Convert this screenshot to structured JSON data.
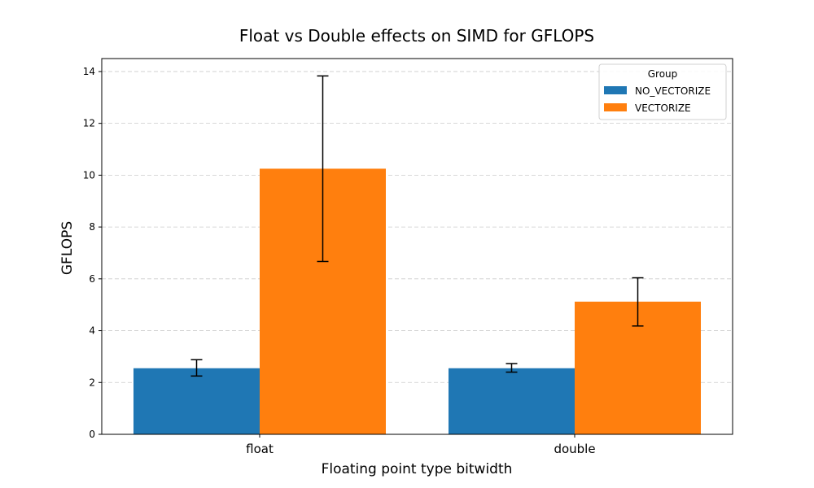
{
  "chart_data": {
    "type": "bar",
    "title": "Float vs Double effects on SIMD for GFLOPS",
    "xlabel": "Floating point type bitwidth",
    "ylabel": "GFLOPS",
    "categories": [
      "float",
      "double"
    ],
    "series": [
      {
        "name": "NO_VECTORIZE",
        "color": "#1f77b4",
        "values": [
          2.55,
          2.55
        ],
        "err_low": [
          2.25,
          2.4
        ],
        "err_high": [
          2.88,
          2.73
        ]
      },
      {
        "name": "VECTORIZE",
        "color": "#ff7f0e",
        "values": [
          10.25,
          5.12
        ],
        "err_low": [
          6.67,
          4.18
        ],
        "err_high": [
          13.83,
          6.04
        ]
      }
    ],
    "ylim": [
      0,
      14.5
    ],
    "yticks": [
      0,
      2,
      4,
      6,
      8,
      10,
      12,
      14
    ],
    "grid": "y-dashed",
    "legend": {
      "title": "Group",
      "placement": "top-right"
    }
  }
}
